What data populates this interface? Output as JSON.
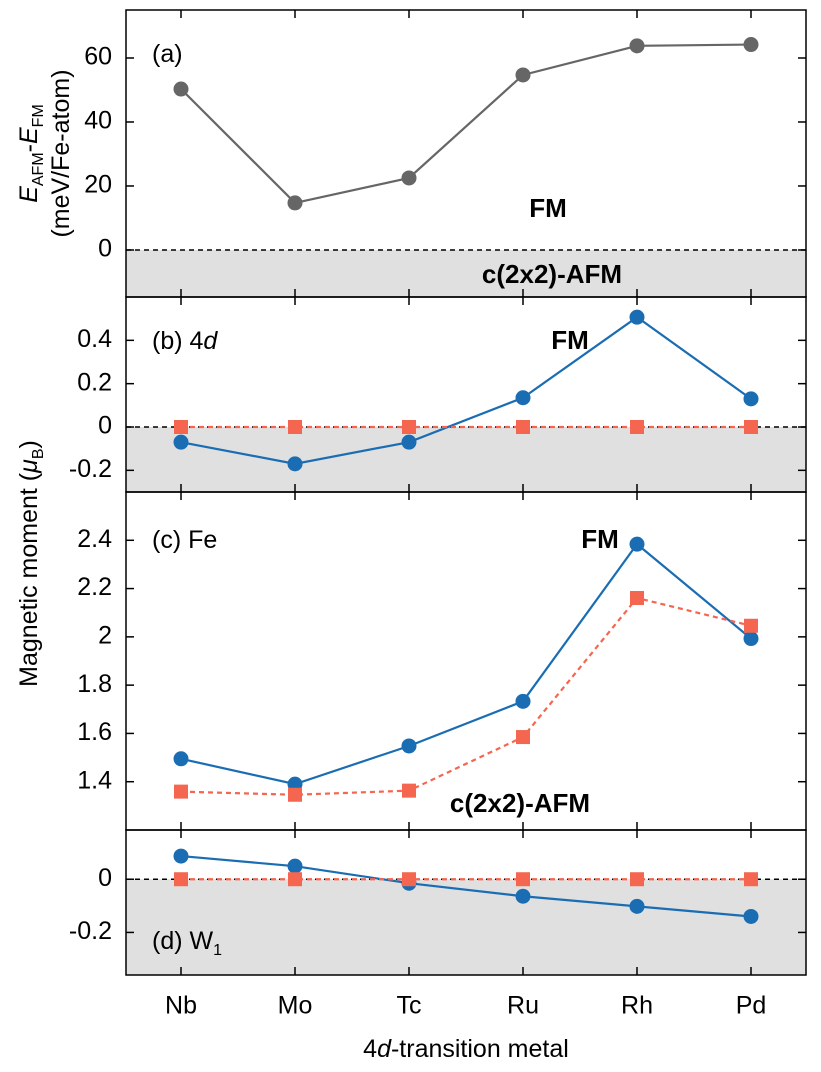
{
  "chart_data": [
    {
      "type": "line",
      "label": [
        {
          "text": "(a)"
        }
      ],
      "ylabel": [
        [
          {
            "text": "E",
            "style": "italic"
          },
          {
            "text": "AFM",
            "style": "sub"
          },
          {
            "text": "-"
          },
          {
            "text": "E",
            "style": "italic"
          },
          {
            "text": "FM",
            "style": "sub"
          }
        ],
        [
          {
            "text": "(meV/Fe-atom)"
          }
        ]
      ],
      "ylim": [
        -14.7,
        75
      ],
      "yticks": [
        0,
        20,
        40,
        60
      ],
      "zero_line": true,
      "shade_negative": true,
      "series": [
        {
          "color": "#666666",
          "marker": "circle",
          "values": [
            50.3,
            14.7,
            22.5,
            54.7,
            63.8,
            64.2
          ]
        }
      ],
      "annotations": [
        {
          "text": "FM",
          "color": "#888888"
        },
        {
          "text": "c(2x2)-AFM",
          "color": "#888888"
        }
      ]
    },
    {
      "type": "line",
      "label": [
        {
          "text": "(b) 4"
        },
        {
          "text": "d",
          "style": "italic"
        }
      ],
      "ylim": [
        -0.3,
        0.6
      ],
      "yticks": [
        -0.2,
        0,
        0.2,
        0.4
      ],
      "zero_line": true,
      "shade_negative": true,
      "series": [
        {
          "name": "FM",
          "color": "#1a6db3",
          "marker": "circle",
          "values": [
            -0.07,
            -0.17,
            -0.07,
            0.135,
            0.507,
            0.13
          ]
        },
        {
          "color": "#f4664f",
          "marker": "square",
          "dash": true,
          "values": [
            0,
            0,
            0,
            0,
            0,
            0
          ]
        }
      ]
    },
    {
      "type": "line",
      "label": [
        {
          "text": "(c) Fe"
        }
      ],
      "ylabel": [
        [
          {
            "text": "Magnetic moment ("
          },
          {
            "text": "μ",
            "style": "italic"
          },
          {
            "text": "B",
            "style": "sub"
          },
          {
            "text": ")"
          }
        ]
      ],
      "ylim": [
        1.2,
        2.6
      ],
      "yticks": [
        1.4,
        1.6,
        1.8,
        2,
        2.2,
        2.4
      ],
      "series": [
        {
          "name": "FM",
          "color": "#1a6db3",
          "marker": "circle",
          "values": [
            1.495,
            1.39,
            1.548,
            1.733,
            2.384,
            1.993
          ]
        },
        {
          "name": "c(2x2)-AFM",
          "color": "#f4664f",
          "marker": "square",
          "dash": true,
          "values": [
            1.359,
            1.346,
            1.363,
            1.585,
            2.161,
            2.046
          ]
        }
      ]
    },
    {
      "type": "line",
      "label": [
        {
          "text": "(d) W"
        },
        {
          "text": "1",
          "style": "sub"
        }
      ],
      "categories": [
        "Nb",
        "Mo",
        "Tc",
        "Ru",
        "Rh",
        "Pd"
      ],
      "xlabel": [
        {
          "text": "4"
        },
        {
          "text": "d",
          "style": "italic"
        },
        {
          "text": "-transition metal"
        }
      ],
      "ylim": [
        -0.36,
        0.185
      ],
      "yticks": [
        -0.2,
        0
      ],
      "zero_line": true,
      "shade_negative": true,
      "series": [
        {
          "color": "#1a6db3",
          "marker": "circle",
          "values": [
            0.087,
            0.049,
            -0.015,
            -0.064,
            -0.102,
            -0.14
          ]
        },
        {
          "color": "#f4664f",
          "marker": "square",
          "dash": true,
          "values": [
            0,
            0,
            0,
            0,
            0,
            0
          ]
        }
      ]
    }
  ]
}
